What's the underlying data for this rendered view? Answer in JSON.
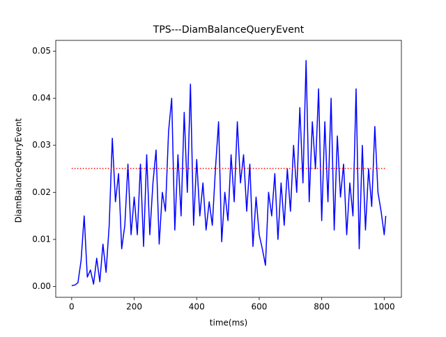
{
  "chart_data": {
    "type": "line",
    "title": "TPS---DiamBalanceQueryEvent",
    "xlabel": "time(ms)",
    "ylabel": "DiamBalanceQueryEvent",
    "x": [
      0,
      10,
      20,
      30,
      40,
      50,
      60,
      70,
      80,
      90,
      100,
      110,
      120,
      130,
      140,
      150,
      160,
      170,
      180,
      190,
      200,
      210,
      220,
      230,
      240,
      250,
      260,
      270,
      280,
      290,
      300,
      310,
      320,
      330,
      340,
      350,
      360,
      370,
      380,
      390,
      400,
      410,
      420,
      430,
      440,
      450,
      460,
      470,
      480,
      490,
      500,
      510,
      520,
      530,
      540,
      550,
      560,
      570,
      580,
      590,
      600,
      610,
      620,
      630,
      640,
      650,
      660,
      670,
      680,
      690,
      700,
      710,
      720,
      730,
      740,
      750,
      760,
      770,
      780,
      790,
      800,
      810,
      820,
      830,
      840,
      850,
      860,
      870,
      880,
      890,
      900,
      910,
      920,
      930,
      940,
      950,
      960,
      970,
      980,
      990,
      1000,
      1005
    ],
    "series": [
      {
        "color": "#0000ff",
        "values": [
          0.0002,
          0.0003,
          0.0008,
          0.0055,
          0.015,
          0.002,
          0.0035,
          0.0005,
          0.006,
          0.001,
          0.009,
          0.003,
          0.013,
          0.0315,
          0.018,
          0.024,
          0.008,
          0.013,
          0.026,
          0.011,
          0.019,
          0.011,
          0.026,
          0.0085,
          0.028,
          0.011,
          0.022,
          0.029,
          0.009,
          0.02,
          0.016,
          0.033,
          0.04,
          0.012,
          0.028,
          0.015,
          0.037,
          0.02,
          0.043,
          0.013,
          0.027,
          0.015,
          0.022,
          0.012,
          0.018,
          0.013,
          0.025,
          0.035,
          0.0095,
          0.02,
          0.014,
          0.028,
          0.018,
          0.035,
          0.022,
          0.028,
          0.016,
          0.026,
          0.0085,
          0.019,
          0.011,
          0.008,
          0.0045,
          0.02,
          0.015,
          0.024,
          0.01,
          0.022,
          0.013,
          0.025,
          0.016,
          0.03,
          0.02,
          0.038,
          0.022,
          0.048,
          0.018,
          0.035,
          0.025,
          0.042,
          0.014,
          0.035,
          0.018,
          0.04,
          0.012,
          0.032,
          0.019,
          0.026,
          0.011,
          0.022,
          0.015,
          0.042,
          0.008,
          0.03,
          0.012,
          0.025,
          0.017,
          0.034,
          0.02,
          0.016,
          0.011,
          0.015
        ]
      }
    ],
    "hline": {
      "y": 0.0251,
      "xmin": 0,
      "xmax": 1005,
      "color": "#ff0000"
    },
    "xlim": [
      -51,
      1055
    ],
    "ylim": [
      -0.0023,
      0.0523
    ],
    "xticks": [
      0,
      200,
      400,
      600,
      800,
      1000
    ],
    "yticks": [
      {
        "value": 0,
        "label": "0.00"
      },
      {
        "value": 0.01,
        "label": "0.01"
      },
      {
        "value": 0.02,
        "label": "0.02"
      },
      {
        "value": 0.03,
        "label": "0.03"
      },
      {
        "value": 0.04,
        "label": "0.04"
      },
      {
        "value": 0.05,
        "label": "0.05"
      }
    ]
  }
}
